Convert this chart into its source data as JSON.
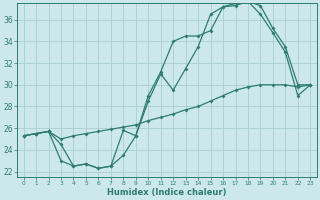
{
  "xlabel": "Humidex (Indice chaleur)",
  "ylabel": "",
  "bg_color": "#cce8ea",
  "grid_color": "#aacfd2",
  "line_color": "#2e7d6e",
  "xlim": [
    -0.5,
    23.5
  ],
  "ylim": [
    21.5,
    37.5
  ],
  "xticks": [
    0,
    1,
    2,
    3,
    4,
    5,
    6,
    7,
    8,
    9,
    10,
    11,
    12,
    13,
    14,
    15,
    16,
    17,
    18,
    19,
    20,
    21,
    22,
    23
  ],
  "yticks": [
    22,
    24,
    26,
    28,
    30,
    32,
    34,
    36
  ],
  "line1_x": [
    0,
    1,
    2,
    3,
    4,
    5,
    6,
    7,
    8,
    9,
    10,
    11,
    12,
    13,
    14,
    15,
    16,
    17,
    18,
    19,
    20,
    21,
    22,
    23
  ],
  "line1_y": [
    25.3,
    25.5,
    25.7,
    24.5,
    22.5,
    22.7,
    22.3,
    22.5,
    25.8,
    25.3,
    29.0,
    31.2,
    34.0,
    34.5,
    34.5,
    35.0,
    37.2,
    37.5,
    37.7,
    37.3,
    35.2,
    33.5,
    30.0,
    30.0
  ],
  "line2_x": [
    0,
    1,
    2,
    3,
    4,
    5,
    6,
    7,
    8,
    9,
    10,
    11,
    12,
    13,
    14,
    15,
    16,
    17,
    18,
    19,
    20,
    21,
    22,
    23
  ],
  "line2_y": [
    25.3,
    25.5,
    25.7,
    23.0,
    22.5,
    22.7,
    22.3,
    22.5,
    23.5,
    25.3,
    28.5,
    31.0,
    29.5,
    31.5,
    33.5,
    36.5,
    37.2,
    37.3,
    37.7,
    36.5,
    34.8,
    33.0,
    29.0,
    30.0
  ],
  "line3_x": [
    0,
    1,
    2,
    3,
    4,
    5,
    6,
    7,
    8,
    9,
    10,
    11,
    12,
    13,
    14,
    15,
    16,
    17,
    18,
    19,
    20,
    21,
    22,
    23
  ],
  "line3_y": [
    25.3,
    25.5,
    25.7,
    25.0,
    25.3,
    25.5,
    25.7,
    25.9,
    26.1,
    26.3,
    26.7,
    27.0,
    27.3,
    27.7,
    28.0,
    28.5,
    29.0,
    29.5,
    29.8,
    30.0,
    30.0,
    30.0,
    29.8,
    30.0
  ]
}
